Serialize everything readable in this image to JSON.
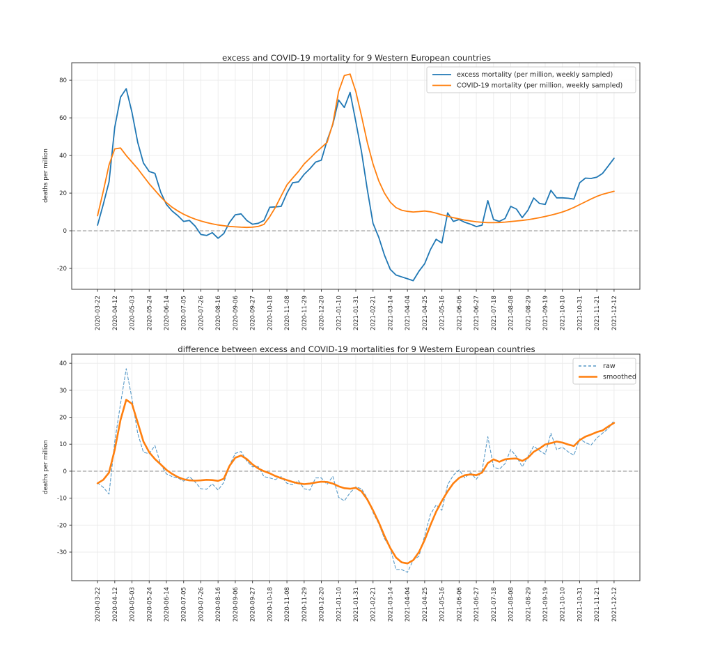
{
  "figure": {
    "background": "#ffffff",
    "accent_blue": "#1f77b4",
    "accent_orange": "#ff7f0e",
    "grid_color": "#ebebeb",
    "spine_color": "#3c3c3c",
    "zero_line_color": "#909090",
    "text_color": "#262626"
  },
  "chart_data": [
    {
      "type": "line",
      "title": "excess and COVID-19 mortality for 9 Western European countries",
      "xlabel": "",
      "ylabel": "deaths per million",
      "grid": true,
      "legend_position": "upper right",
      "ylim": [
        -31.1,
        89.3
      ],
      "xlim_weeks": [
        -4.5,
        94.5
      ],
      "y_ticks": [
        -20,
        0,
        20,
        40,
        60,
        80
      ],
      "zero_line": 0,
      "x_tick_step_weeks": 3,
      "x_tick_labels": [
        "2020-03-22",
        "2020-04-12",
        "2020-05-03",
        "2020-05-24",
        "2020-06-14",
        "2020-07-05",
        "2020-07-26",
        "2020-08-16",
        "2020-09-06",
        "2020-09-27",
        "2020-10-18",
        "2020-11-08",
        "2020-11-29",
        "2020-12-20",
        "2021-01-10",
        "2021-01-31",
        "2021-02-21",
        "2021-03-14",
        "2021-04-04",
        "2021-04-25",
        "2021-05-16",
        "2021-06-06",
        "2021-06-27",
        "2021-07-18",
        "2021-08-08",
        "2021-08-29",
        "2021-09-19",
        "2021-10-10",
        "2021-10-31",
        "2021-11-21",
        "2021-12-12"
      ],
      "series": [
        {
          "name": "excess mortality (per million, weekly sampled)",
          "color": "#1f77b4",
          "style": "solid",
          "width": 1.8,
          "opacity": 1,
          "values": [
            3,
            14,
            26,
            55,
            71,
            75.5,
            63,
            47,
            36,
            31.5,
            30.5,
            20.5,
            14,
            10.5,
            8,
            5,
            5.5,
            2.5,
            -2,
            -2.5,
            -1,
            -4,
            -1.5,
            4.5,
            8.5,
            9,
            5.5,
            3.5,
            4,
            5.5,
            12.5,
            12.7,
            13,
            20,
            25.5,
            26,
            30,
            33,
            36.5,
            37.5,
            48,
            56.5,
            69.5,
            65.5,
            73.5,
            58,
            42,
            22,
            4,
            -3.5,
            -13,
            -20.5,
            -23.5,
            -24.5,
            -25.5,
            -26.5,
            -21.5,
            -17.5,
            -10,
            -4.5,
            -6.5,
            9.5,
            5,
            6,
            4.5,
            3.5,
            2.2,
            3,
            16,
            6,
            5,
            6.5,
            13,
            11.5,
            7,
            11,
            17.4,
            14.5,
            14,
            21.5,
            17.5,
            17.5,
            17.3,
            16.8,
            25.5,
            28,
            27.8,
            28.5,
            30.5,
            34.5,
            38.5
          ]
        },
        {
          "name": "COVID-19 mortality (per million, weekly sampled)",
          "color": "#ff7f0e",
          "style": "solid",
          "width": 1.8,
          "opacity": 1,
          "values": [
            8,
            21,
            35,
            43.5,
            44,
            40,
            36.5,
            33,
            29,
            25,
            21.5,
            18,
            15,
            12.5,
            10.5,
            8.8,
            7.4,
            6.2,
            5.2,
            4.4,
            3.7,
            3.1,
            2.7,
            2.3,
            2.1,
            1.9,
            1.8,
            1.9,
            2.3,
            3.4,
            7.5,
            12.5,
            18.5,
            24.4,
            28,
            31.5,
            35.5,
            38.5,
            41.5,
            44.2,
            47,
            57,
            74,
            82.5,
            83.3,
            74,
            61,
            47,
            35.5,
            26.5,
            20,
            15.2,
            12.3,
            10.9,
            10.3,
            10,
            10.2,
            10.5,
            10.1,
            9.4,
            8.5,
            7.7,
            7,
            6.3,
            5.7,
            5.2,
            4.8,
            4.5,
            4.3,
            4.3,
            4.4,
            4.6,
            4.9,
            5.2,
            5.5,
            5.9,
            6.4,
            7,
            7.6,
            8.3,
            9.1,
            10,
            11.1,
            12.4,
            13.9,
            15.4,
            16.9,
            18.3,
            19.4,
            20.2,
            21
          ]
        }
      ]
    },
    {
      "type": "line",
      "title": "difference between excess and COVID-19 mortalities for 9 Western European countries",
      "xlabel": "",
      "ylabel": "deaths per million",
      "grid": true,
      "legend_position": "upper right",
      "ylim": [
        -40.6,
        43.4
      ],
      "xlim_weeks": [
        -4.5,
        94.5
      ],
      "y_ticks": [
        -30,
        -20,
        -10,
        0,
        10,
        20,
        30,
        40
      ],
      "zero_line": 0,
      "x_tick_step_weeks": 3,
      "x_tick_labels": [
        "2020-03-22",
        "2020-04-12",
        "2020-05-03",
        "2020-05-24",
        "2020-06-14",
        "2020-07-05",
        "2020-07-26",
        "2020-08-16",
        "2020-09-06",
        "2020-09-27",
        "2020-10-18",
        "2020-11-08",
        "2020-11-29",
        "2020-12-20",
        "2021-01-10",
        "2021-01-31",
        "2021-02-21",
        "2021-03-14",
        "2021-04-04",
        "2021-04-25",
        "2021-05-16",
        "2021-06-06",
        "2021-06-27",
        "2021-07-18",
        "2021-08-08",
        "2021-08-29",
        "2021-09-19",
        "2021-10-10",
        "2021-10-31",
        "2021-11-21",
        "2021-12-12"
      ],
      "series": [
        {
          "name": "raw",
          "color": "#1f77b4",
          "style": "dashed",
          "width": 1.1,
          "opacity": 0.75,
          "values": [
            -4.3,
            -6,
            -8.5,
            11,
            25,
            38,
            27,
            14,
            7,
            6.5,
            9.5,
            2.5,
            -1,
            -2,
            -2.5,
            -3.7,
            -2,
            -4,
            -6.5,
            -6.7,
            -4.7,
            -7,
            -4.2,
            2.2,
            6.6,
            7.3,
            3.8,
            1.6,
            1.7,
            -2,
            -2.5,
            -3.1,
            -2,
            -4.5,
            -5,
            -3.5,
            -6.5,
            -7,
            -2.5,
            -2.5,
            -4.9,
            -1.9,
            -9.7,
            -11,
            -8,
            -5.8,
            -6.5,
            -10,
            -15.3,
            -19.5,
            -25,
            -28.5,
            -36.5,
            -36.5,
            -37.5,
            -33,
            -31.5,
            -24,
            -16,
            -12.5,
            -14.5,
            -5,
            -1.5,
            0.5,
            -2.5,
            -0.5,
            -3,
            0.1,
            12.8,
            1.6,
            0.7,
            2.8,
            8,
            5.4,
            1.6,
            5.4,
            9.3,
            7.6,
            6.3,
            14.1,
            8,
            8.9,
            7.2,
            5.9,
            12,
            10.6,
            9.7,
            12.3,
            14.1,
            15.8,
            18.8
          ]
        },
        {
          "name": "smoothed",
          "color": "#ff7f0e",
          "style": "solid",
          "width": 2.6,
          "opacity": 1,
          "values": [
            -4.5,
            -3.2,
            -0.5,
            8,
            19,
            26.5,
            25,
            18,
            11,
            7,
            4.5,
            2.5,
            0.5,
            -1,
            -2.2,
            -3,
            -3.4,
            -3.5,
            -3.4,
            -3.2,
            -3.3,
            -3.6,
            -2.8,
            2,
            5,
            5.8,
            4.5,
            2.5,
            1,
            0,
            -0.8,
            -1.8,
            -2.6,
            -3.3,
            -4,
            -4.5,
            -4.8,
            -4.6,
            -4.2,
            -3.9,
            -4,
            -4.6,
            -5.6,
            -6.3,
            -6.5,
            -6.2,
            -7.5,
            -10.5,
            -14.5,
            -19,
            -24,
            -28.5,
            -32,
            -33.8,
            -34.2,
            -33,
            -30,
            -25.5,
            -20,
            -15,
            -11,
            -7.5,
            -4.5,
            -2.5,
            -1.5,
            -1.2,
            -1.5,
            -0.5,
            3,
            4.4,
            3.5,
            4.4,
            4.6,
            4.7,
            3.8,
            5,
            7.2,
            8.4,
            9.9,
            10.4,
            11,
            10.6,
            9.9,
            9.3,
            11.5,
            12.8,
            13.6,
            14.5,
            15.1,
            16.6,
            17.9
          ]
        }
      ]
    }
  ]
}
